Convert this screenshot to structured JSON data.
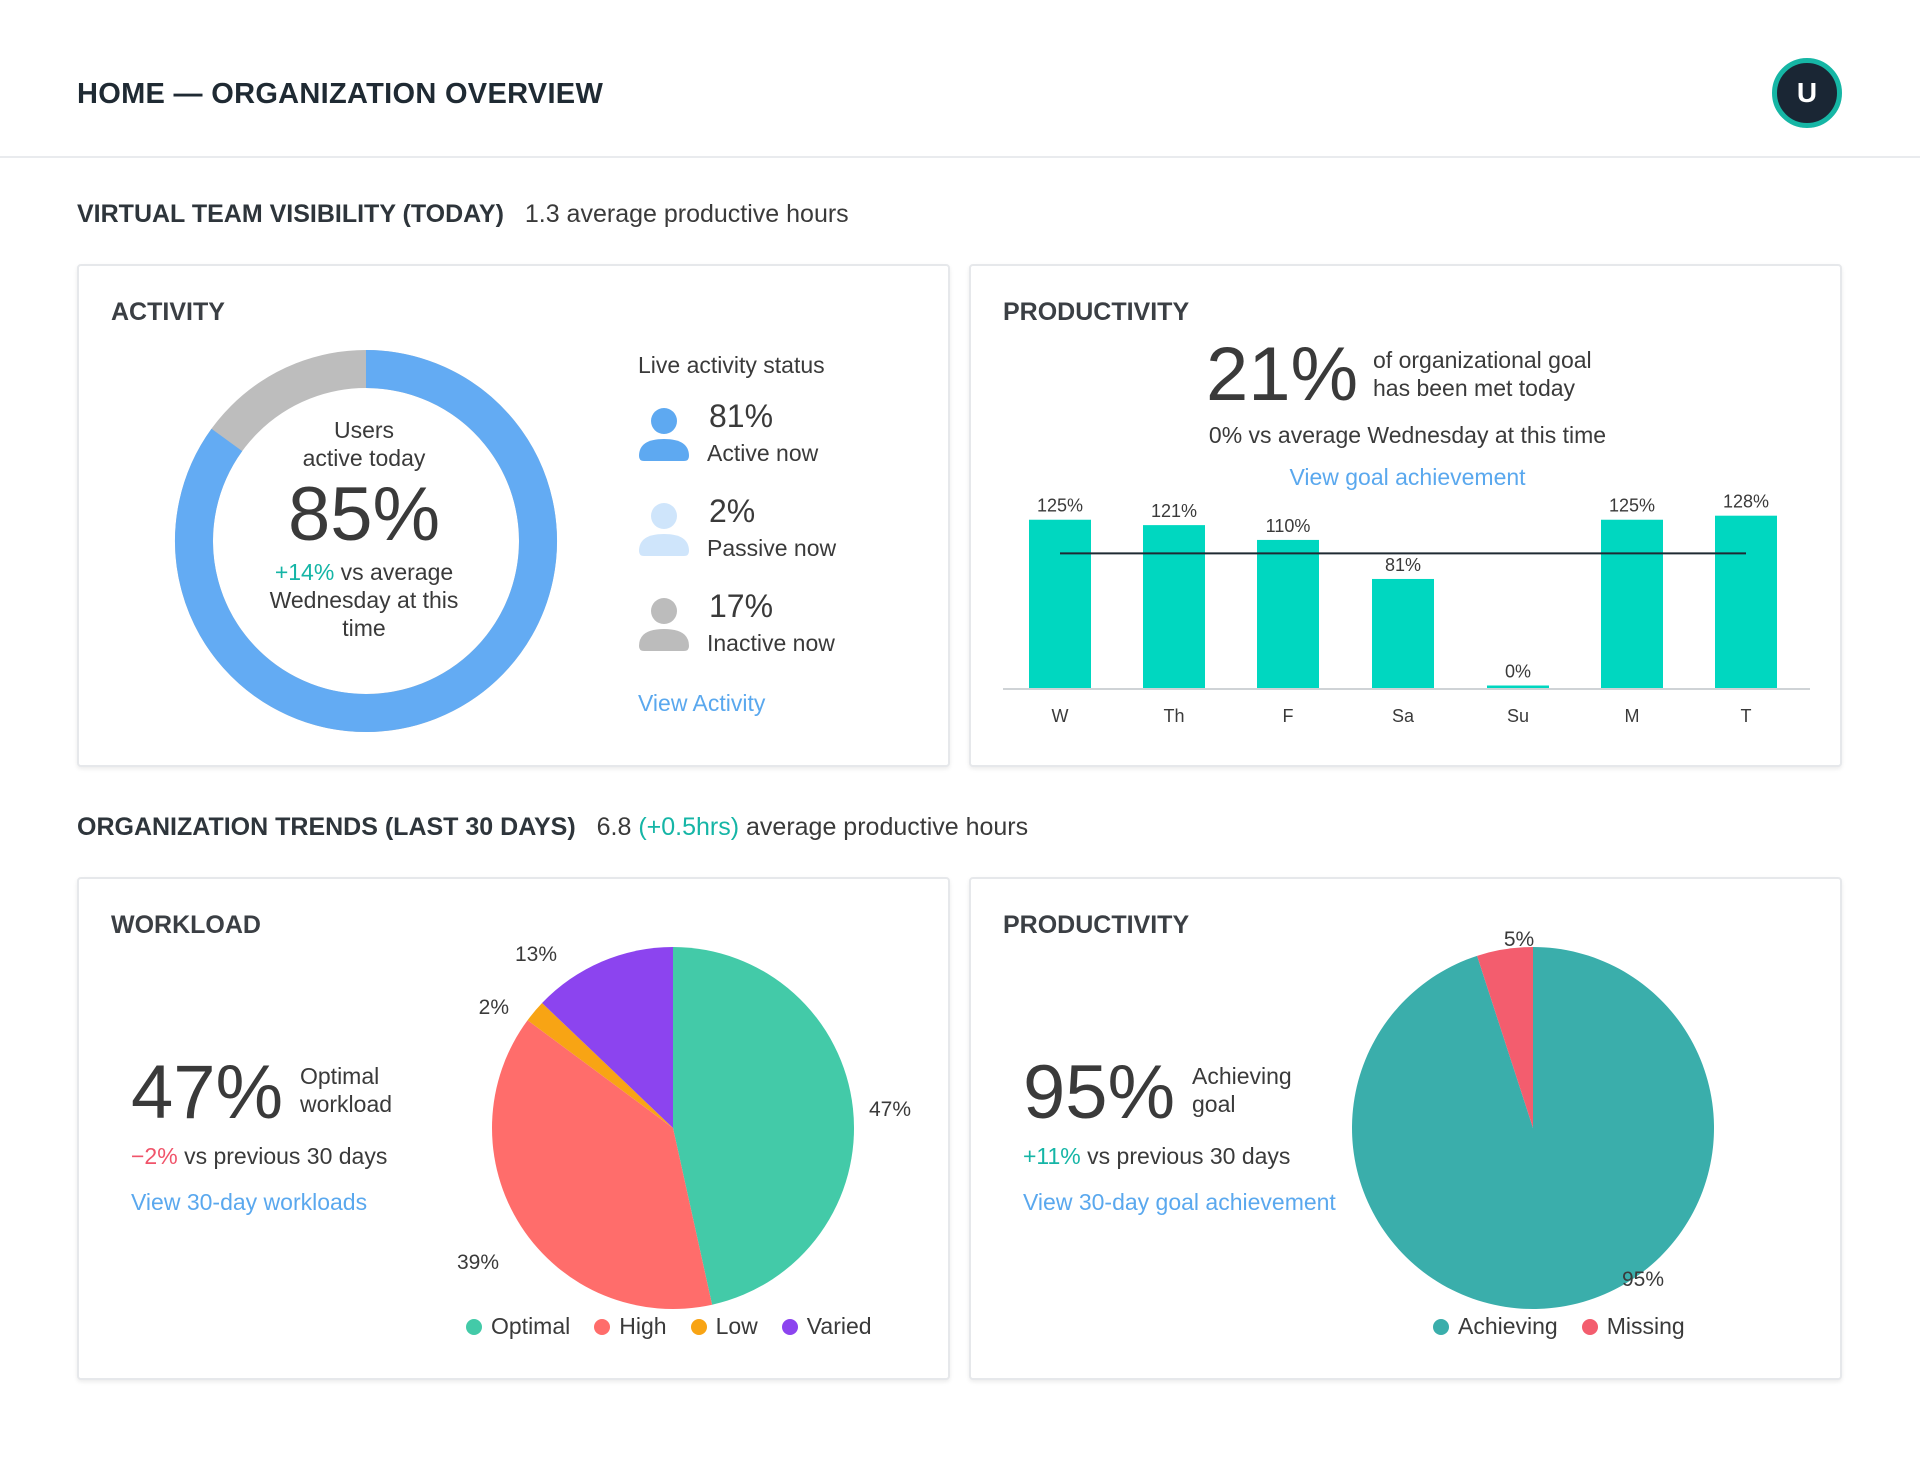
{
  "header": {
    "title": "HOME — ORGANIZATION OVERVIEW",
    "avatar_initial": "U"
  },
  "section_today": {
    "title": "VIRTUAL TEAM VISIBILITY (TODAY)",
    "summary": "1.3 average productive hours"
  },
  "activity": {
    "title": "ACTIVITY",
    "donut": {
      "line1": "Users",
      "line2": "active today",
      "value": "85%",
      "delta": "+14%",
      "compare_1": "vs average",
      "compare_2": "Wednesday at this",
      "compare_3": "time",
      "active_fraction": 0.85
    },
    "live_title": "Live activity status",
    "statuses": [
      {
        "value": "81%",
        "label": "Active now",
        "color": "#5ea9f1"
      },
      {
        "value": "2%",
        "label": "Passive now",
        "color": "#cfe5fb"
      },
      {
        "value": "17%",
        "label": "Inactive now",
        "color": "#bcbcbc"
      }
    ],
    "link": "View Activity",
    "colors": {
      "active": "#63abf3",
      "inactive": "#bdbdbd"
    }
  },
  "productivity_today": {
    "title": "PRODUCTIVITY",
    "value": "21%",
    "desc_1": "of organizational goal",
    "desc_2": "has been met today",
    "compare": "0% vs average Wednesday at this time",
    "link": "View goal achievement",
    "chart_data": {
      "type": "bar",
      "categories": [
        "W",
        "Th",
        "F",
        "Sa",
        "Su",
        "M",
        "T"
      ],
      "values": [
        125,
        121,
        110,
        81,
        0,
        125,
        128
      ],
      "labels": [
        "125%",
        "121%",
        "110%",
        "81%",
        "0%",
        "125%",
        "128%"
      ],
      "goal_line": 100,
      "ylim": [
        0,
        130
      ],
      "color": "#00d7c0"
    }
  },
  "section_trends": {
    "title": "ORGANIZATION TRENDS (LAST 30 DAYS)",
    "value": "6.8",
    "delta": "(+0.5hrs)",
    "suffix": "average productive hours"
  },
  "workload": {
    "title": "WORKLOAD",
    "value": "47%",
    "label_1": "Optimal",
    "label_2": "workload",
    "delta": "−2%",
    "compare": "vs previous 30 days",
    "link": "View 30-day workloads",
    "chart_data": {
      "type": "pie",
      "categories": [
        "Optimal",
        "High",
        "Low",
        "Varied"
      ],
      "values": [
        47,
        39,
        2,
        13
      ],
      "labels": [
        "47%",
        "39%",
        "2%",
        "13%"
      ],
      "colors": [
        "#43caa8",
        "#ff6d6b",
        "#f8a414",
        "#8c44ef"
      ]
    }
  },
  "productivity_trend": {
    "title": "PRODUCTIVITY",
    "value": "95%",
    "label_1": "Achieving",
    "label_2": "goal",
    "delta": "+11%",
    "compare": "vs previous 30 days",
    "link": "View 30-day goal achievement",
    "chart_data": {
      "type": "pie",
      "categories": [
        "Achieving",
        "Missing"
      ],
      "values": [
        95,
        5
      ],
      "labels": [
        "95%",
        "5%"
      ],
      "colors": [
        "#3aaeab",
        "#f35d6e"
      ]
    }
  }
}
